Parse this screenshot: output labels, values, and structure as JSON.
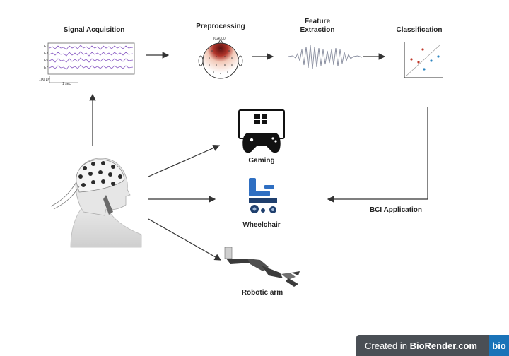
{
  "steps": {
    "signal_acquisition": "Signal Acquisition",
    "preprocessing": "Preprocessing",
    "feature_extraction": "Feature\nExtraction",
    "classification": "Classification",
    "bci_application": "BCI Application"
  },
  "eeg": {
    "channels": [
      "E1",
      "E3",
      "E5",
      "E7"
    ],
    "scale_voltage": "100 µV",
    "scale_time": "1 sec"
  },
  "topomap_label": "ICA000",
  "applications": {
    "gaming": "Gaming",
    "wheelchair": "Wheelchair",
    "robotic_arm": "Robotic arm"
  },
  "badge": {
    "prefix": "Created in ",
    "brand": "BioRender.com",
    "logo": "bio"
  },
  "colors": {
    "eeg_trace": "#8a5cc4",
    "feature_wave": "#8a8fa0",
    "wheelchair": "#2f6fc2",
    "arrow": "#333333"
  }
}
